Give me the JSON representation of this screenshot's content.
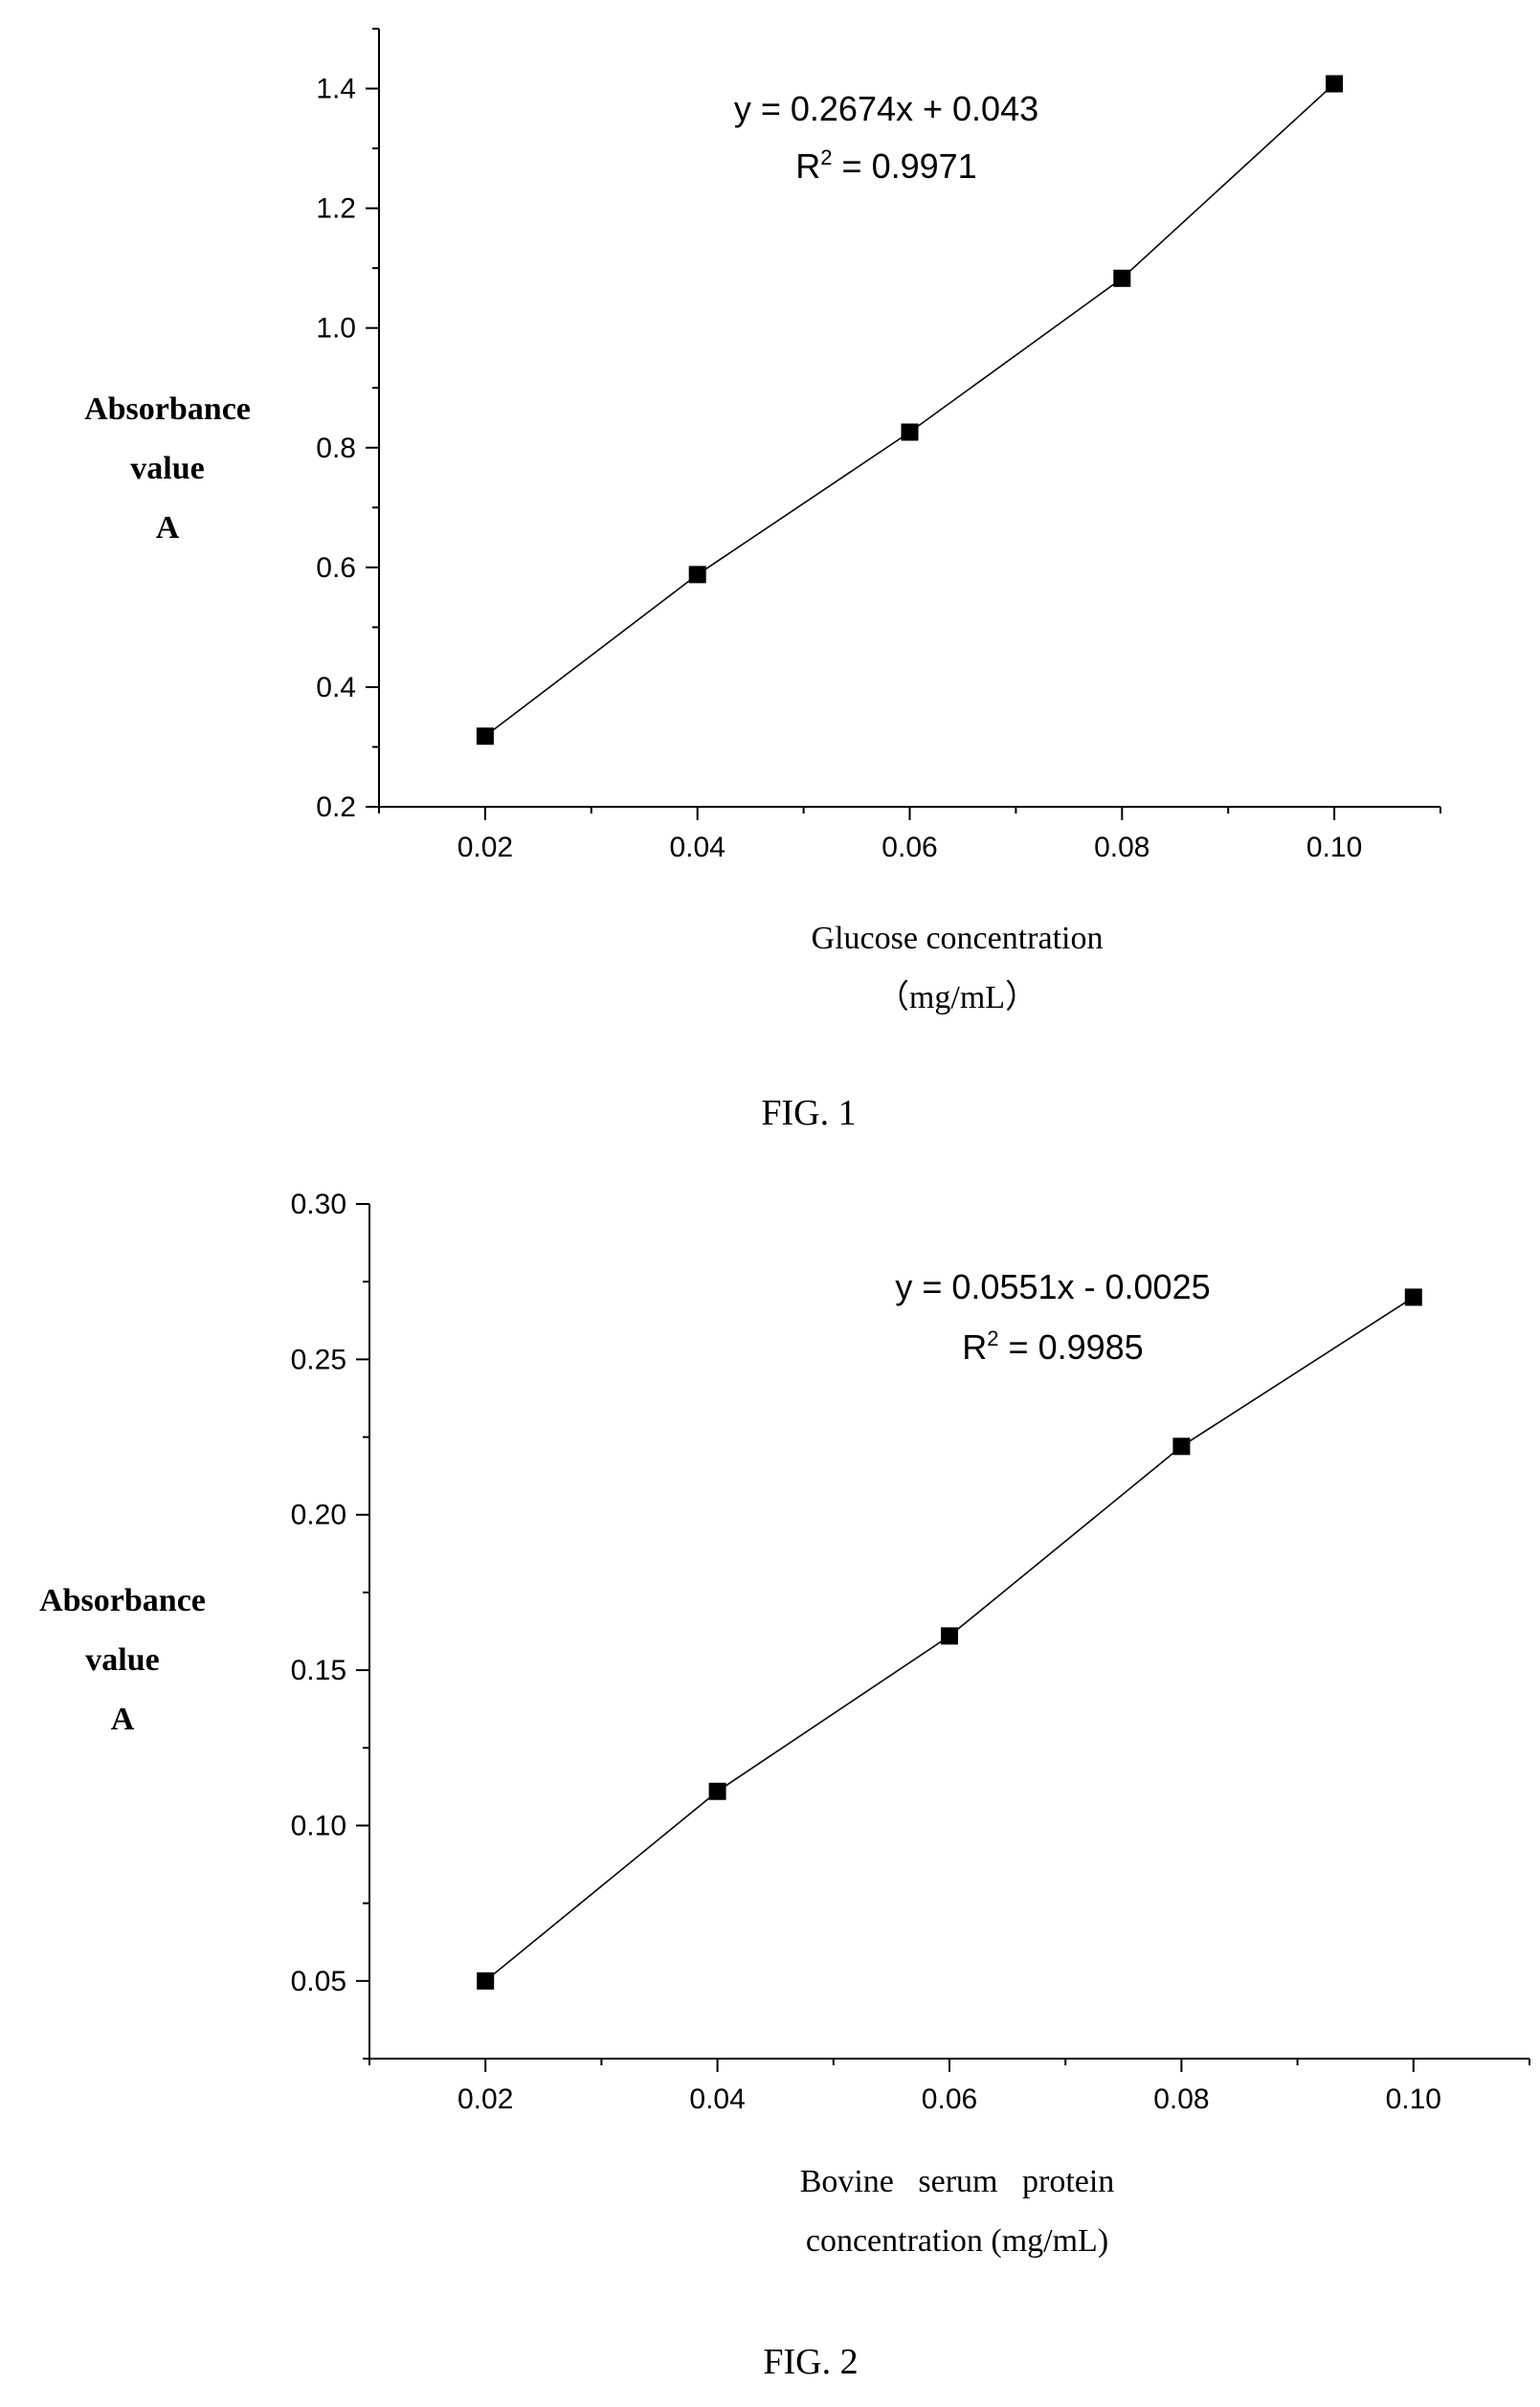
{
  "chart_data": [
    {
      "type": "scatter",
      "x": [
        0.02,
        0.04,
        0.06,
        0.08,
        0.1
      ],
      "series": [
        {
          "values": [
            0.318,
            0.588,
            0.826,
            1.083,
            1.408
          ],
          "color": "#000000",
          "marker": "square",
          "line": true
        }
      ],
      "xlim": [
        0.01,
        0.11
      ],
      "ylim": [
        0.2,
        1.5
      ],
      "xticks": [
        "0.02",
        "0.04",
        "0.06",
        "0.08",
        "0.10"
      ],
      "yticks": [
        "0.2",
        "0.4",
        "0.6",
        "0.8",
        "1.0",
        "1.2",
        "1.4"
      ],
      "ylabel_lines": [
        "Absorbance",
        "value",
        "A"
      ],
      "xlabel_lines": [
        "Glucose concentration",
        "（mg/mL）"
      ],
      "equation": "y = 0.2674x + 0.043",
      "r_squared": {
        "prefix": "R",
        "exp": "2",
        "value": " = 0.9971"
      },
      "caption": "FIG. 1",
      "grid": false
    },
    {
      "type": "scatter",
      "x": [
        0.02,
        0.04,
        0.06,
        0.08,
        0.1
      ],
      "series": [
        {
          "values": [
            0.05,
            0.111,
            0.161,
            0.222,
            0.27
          ],
          "color": "#000000",
          "marker": "square",
          "line": true
        }
      ],
      "xlim": [
        0.01,
        0.11
      ],
      "ylim": [
        0.025,
        0.3
      ],
      "xticks": [
        "0.02",
        "0.04",
        "0.06",
        "0.08",
        "0.10"
      ],
      "yticks": [
        "0.05",
        "0.10",
        "0.15",
        "0.20",
        "0.25",
        "0.30"
      ],
      "ylabel_lines": [
        "Absorbance",
        "value",
        "A"
      ],
      "xlabel_lines": [
        "Bovine   serum   protein",
        "concentration (mg/mL)"
      ],
      "equation": "y = 0.0551x - 0.0025",
      "r_squared": {
        "prefix": "R",
        "exp": "2",
        "value": " = 0.9985"
      },
      "caption": "FIG. 2",
      "grid": false
    }
  ]
}
